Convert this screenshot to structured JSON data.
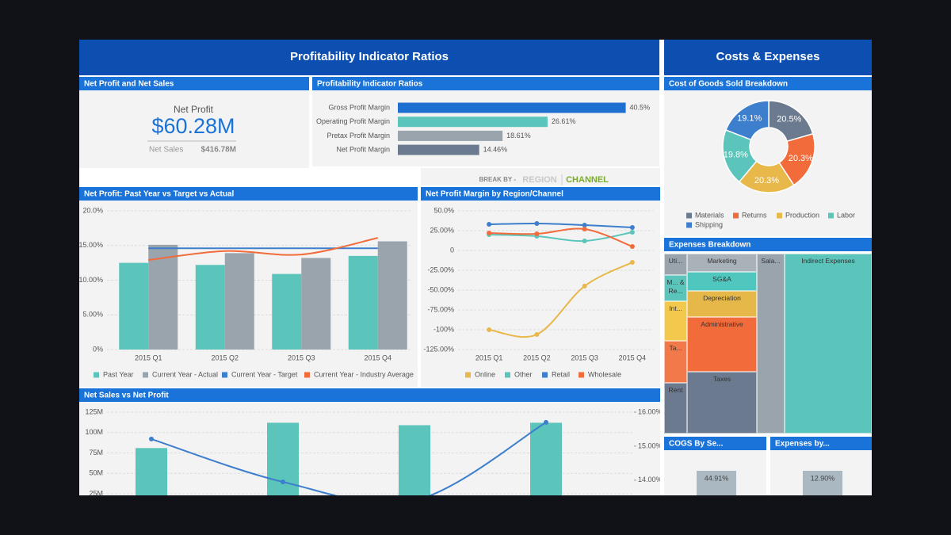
{
  "dashboard": {
    "left_title": "Profitability Indicator Ratios",
    "right_title": "Costs & Expenses"
  },
  "kpi": {
    "title": "Net Profit and Net Sales",
    "label": "Net Profit",
    "value": "$60.28M",
    "sub_label": "Net Sales",
    "sub_value": "$416.78M"
  },
  "break_by": {
    "label": "BREAK BY -",
    "options": [
      "REGION",
      "CHANNEL"
    ],
    "selected": 1
  },
  "chart_data": [
    {
      "type": "bar",
      "orientation": "horizontal",
      "title": "Profitability Indicator Ratios",
      "categories": [
        "Gross Profit Margin",
        "Operating Profit Margin",
        "Pretax Profit Margin",
        "Net Profit Margin"
      ],
      "values": [
        40.5,
        26.61,
        18.61,
        14.46
      ],
      "value_labels": [
        "40.5%",
        "26.61%",
        "18.61%",
        "14.46%"
      ],
      "colors": [
        "#1f6fd1",
        "#5bc4bb",
        "#9aa4ad",
        "#6b7a8f"
      ]
    },
    {
      "type": "pie",
      "donut": true,
      "title": "Cost of Goods Sold Breakdown",
      "categories": [
        "Materials",
        "Returns",
        "Production",
        "Labor",
        "Shipping"
      ],
      "values": [
        20.5,
        20.3,
        20.3,
        19.8,
        19.1
      ],
      "value_labels": [
        "20.5%",
        "20.3%",
        "20.3%",
        "19.8%",
        "19.1%"
      ],
      "colors": [
        "#6b7a8f",
        "#f26b3a",
        "#e8b84a",
        "#5bc4bb",
        "#3d7fcc"
      ]
    },
    {
      "type": "combo",
      "title": "Net Profit: Past Year vs Target vs Actual",
      "categories": [
        "2015 Q1",
        "2015 Q2",
        "2015 Q3",
        "2015 Q4"
      ],
      "series": [
        {
          "name": "Past Year",
          "type": "bar",
          "color": "#5bc4bb",
          "values": [
            12.5,
            12.2,
            10.9,
            13.5
          ]
        },
        {
          "name": "Current Year - Actual",
          "type": "bar",
          "color": "#9aa4ad",
          "values": [
            15.1,
            13.9,
            13.2,
            15.6
          ]
        },
        {
          "name": "Current Year - Target",
          "type": "line",
          "color": "#3d7fcc",
          "values": [
            14.6,
            14.6,
            14.6,
            14.6
          ]
        },
        {
          "name": "Current Year - Industry Average",
          "type": "line",
          "color": "#f26b3a",
          "values": [
            12.9,
            14.2,
            13.7,
            16.1
          ]
        }
      ],
      "ylim": [
        0,
        20
      ],
      "yticks": [
        {
          "value": 0,
          "label": "0%"
        },
        {
          "value": 5,
          "label": "5.00%"
        },
        {
          "value": 10,
          "label": "10.00%"
        },
        {
          "value": 15,
          "label": "15.00%"
        },
        {
          "value": 20,
          "label": "20.0%"
        }
      ],
      "grid": true,
      "legend": "bottom"
    },
    {
      "type": "line",
      "title": "Net Profit Margin by Region/Channel",
      "categories": [
        "2015 Q1",
        "2015 Q2",
        "2015 Q3",
        "2015 Q4"
      ],
      "series": [
        {
          "name": "Online",
          "color": "#e8b84a",
          "values": [
            -100,
            -106,
            -45,
            -15
          ]
        },
        {
          "name": "Other",
          "color": "#5bc4bb",
          "values": [
            20,
            18,
            12,
            23
          ]
        },
        {
          "name": "Retail",
          "color": "#3d7fcc",
          "values": [
            33,
            34,
            32,
            29
          ]
        },
        {
          "name": "Wholesale",
          "color": "#f26b3a",
          "values": [
            22,
            21,
            27,
            5
          ]
        }
      ],
      "ylim": [
        -125,
        50
      ],
      "yticks": [
        {
          "value": -125,
          "label": "-125.00%"
        },
        {
          "value": -100,
          "label": "-100%"
        },
        {
          "value": -75,
          "label": "-75.00%"
        },
        {
          "value": -50,
          "label": "-50.00%"
        },
        {
          "value": -25,
          "label": "-25.00%"
        },
        0,
        {
          "value": 25,
          "label": "25.00%"
        },
        {
          "value": 50,
          "label": "50.0%"
        }
      ],
      "grid": true,
      "legend": "bottom"
    },
    {
      "type": "combo",
      "title": "Net Sales vs Net Profit",
      "series": [
        {
          "type": "bar",
          "color": "#5bc4bb",
          "values": [
            81,
            112,
            109,
            112
          ]
        },
        {
          "type": "line",
          "axis": "y2",
          "color": "#3d7fcc",
          "values": [
            15.21,
            13.95,
            13.4,
            15.7
          ]
        }
      ],
      "ylim": [
        0,
        125
      ],
      "yticks": [
        {
          "value": 25,
          "label": "25M"
        },
        {
          "value": 50,
          "label": "50M"
        },
        {
          "value": 75,
          "label": "75M"
        },
        {
          "value": 100,
          "label": "100M"
        },
        {
          "value": 125,
          "label": "125M"
        }
      ],
      "y2lim": [
        13,
        16
      ],
      "y2ticks": [
        {
          "value": 14,
          "label": "14.00%"
        },
        {
          "value": 15,
          "label": "15.00%"
        },
        {
          "value": 16,
          "label": "16.00%"
        }
      ],
      "grid": true
    },
    {
      "type": "treemap",
      "title": "Expenses Breakdown",
      "categories": [
        "Uti...",
        "M... & Re...",
        "Int...",
        "Ta...",
        "Rent",
        "Marketing",
        "SG&A",
        "Depreciation",
        "Administrative",
        "Taxes",
        "Sala...",
        "Indirect Expenses"
      ],
      "values": [
        7.8,
        9.6,
        14.5,
        15.4,
        18.6,
        20.2,
        21.1,
        29,
        60.7,
        68.6,
        79.5,
        249.7
      ],
      "colors": [
        "#9aa4ad",
        "#5bc4bb",
        "#f2c94c",
        "#f27a4a",
        "#6b7a8f",
        "#a9b2b9",
        "#4fc7bf",
        "#e6b84a",
        "#f26b3a",
        "#6b7a8f",
        "#9aa4ad",
        "#5bc4bb"
      ]
    },
    {
      "type": "bar",
      "title": "COGS By Se...",
      "values": [
        44.91
      ],
      "value_labels": [
        "44.91%"
      ],
      "color": "#aab8c2"
    },
    {
      "type": "bar",
      "title": "Expenses by...",
      "values": [
        12.9
      ],
      "value_labels": [
        "12.90%"
      ],
      "color": "#aab8c2"
    }
  ]
}
